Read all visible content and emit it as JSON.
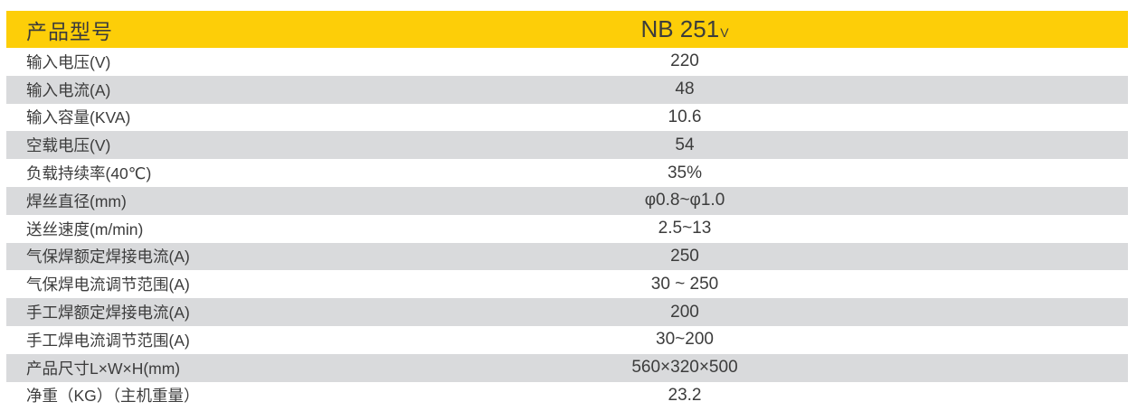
{
  "colors": {
    "header_bg": "#fdce08",
    "row_bg": "#ffffff",
    "row_alt_bg": "#d9dadc",
    "text": "#3c3c3c"
  },
  "table": {
    "header": {
      "label": "产品型号",
      "model": "NB 251",
      "model_suffix": "V"
    },
    "columns": [
      "label",
      "value"
    ],
    "rows": [
      {
        "label": "输入电压(V)",
        "value": "220"
      },
      {
        "label": "输入电流(A)",
        "value": "48"
      },
      {
        "label": "输入容量(KVA)",
        "value": "10.6"
      },
      {
        "label": "空载电压(V)",
        "value": "54"
      },
      {
        "label": "负载持续率(40℃)",
        "value": "35%"
      },
      {
        "label": "焊丝直径(mm)",
        "value": "φ0.8~φ1.0"
      },
      {
        "label": "送丝速度(m/min)",
        "value": "2.5~13"
      },
      {
        "label": "气保焊额定焊接电流(A)",
        "value": "250"
      },
      {
        "label": "气保焊电流调节范围(A)",
        "value": "30 ~ 250"
      },
      {
        "label": "手工焊额定焊接电流(A)",
        "value": "200"
      },
      {
        "label": "手工焊电流调节范围(A)",
        "value": "30~200"
      },
      {
        "label": "产品尺寸L×W×H(mm)",
        "value": "560×320×500"
      },
      {
        "label": "净重（KG）（主机重量）",
        "value": "23.2"
      }
    ]
  }
}
